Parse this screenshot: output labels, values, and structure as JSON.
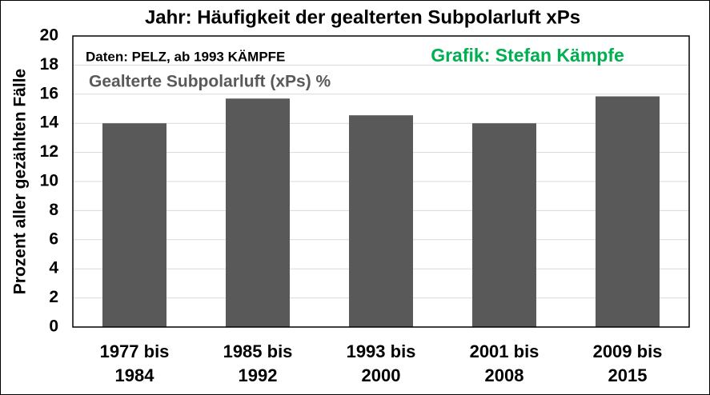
{
  "chart_data": {
    "type": "bar",
    "title": "Jahr: Häufigkeit der gealterten Subpolarluft xPs",
    "annotations": [
      "Daten: PELZ, ab 1993 KÄMPFE",
      "Grafik: Stefan Kämpfe"
    ],
    "y_label": "Prozent aller gezählten Fälle",
    "categories": [
      "1977 bis 1984",
      "1985 bis 1992",
      "1993 bis 2000",
      "2001 bis 2008",
      "2009 bis 2015"
    ],
    "series": [
      {
        "name": "Gealterte Subpolarluft (xPs) %",
        "color": "#595959",
        "values": [
          14.0,
          15.7,
          14.55,
          14.0,
          15.85
        ]
      }
    ],
    "ylim": [
      0,
      20
    ],
    "yticks": [
      0,
      2,
      4,
      6,
      8,
      10,
      12,
      14,
      16,
      18,
      20
    ],
    "grid": true,
    "annotation_colors": [
      "#000000",
      "#00b050"
    ]
  }
}
